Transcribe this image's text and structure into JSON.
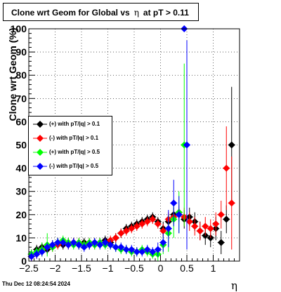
{
  "title": {
    "prefix": "Clone wrt Geom for Global vs",
    "eta": "η",
    "suffix": "at pT > 0.11"
  },
  "ylabel": "Clone wrt Geom (%)",
  "xlabel": "η",
  "timestamp": "Thu Dec 12 08:24:54 2024",
  "chart_data": {
    "type": "scatter",
    "title": "Clone wrt Geom for Global vs η at pT > 0.11",
    "xlabel": "η",
    "ylabel": "Clone wrt Geom (%)",
    "xlim": [
      -2.5,
      1.5
    ],
    "ylim": [
      0,
      100
    ],
    "x_ticks": [
      -2.5,
      -2,
      -1.5,
      -1,
      -0.5,
      0,
      0.5,
      1
    ],
    "x_tick_labels": [
      "−2.5",
      "−2",
      "−1.5",
      "−1",
      "−0.5",
      "0",
      "0.5",
      "1"
    ],
    "y_ticks": [
      0,
      10,
      20,
      30,
      40,
      50,
      60,
      70,
      80,
      90,
      100
    ],
    "y_tick_labels": [
      "0",
      "10",
      "20",
      "30",
      "40",
      "50",
      "60",
      "70",
      "80",
      "90",
      "100"
    ],
    "grid": true,
    "legend_position": "left, middle",
    "series": [
      {
        "name": "(+) with pT/|q| > 0.1",
        "color": "#000000",
        "marker": "diamond",
        "points": [
          [
            -2.45,
            3,
            2
          ],
          [
            -2.35,
            5,
            2
          ],
          [
            -2.25,
            6,
            2
          ],
          [
            -2.15,
            5,
            2
          ],
          [
            -2.05,
            7,
            2
          ],
          [
            -1.95,
            8,
            2
          ],
          [
            -1.85,
            7,
            2
          ],
          [
            -1.75,
            8,
            2
          ],
          [
            -1.65,
            8,
            2
          ],
          [
            -1.55,
            7,
            2
          ],
          [
            -1.45,
            8,
            2
          ],
          [
            -1.35,
            7,
            2
          ],
          [
            -1.25,
            8,
            2
          ],
          [
            -1.15,
            8,
            2
          ],
          [
            -1.05,
            9,
            2
          ],
          [
            -0.95,
            8,
            2
          ],
          [
            -0.85,
            10,
            2
          ],
          [
            -0.75,
            12,
            2
          ],
          [
            -0.65,
            14,
            2
          ],
          [
            -0.55,
            15,
            2
          ],
          [
            -0.45,
            16,
            2
          ],
          [
            -0.35,
            17,
            2
          ],
          [
            -0.25,
            18,
            2
          ],
          [
            -0.15,
            19,
            2
          ],
          [
            -0.05,
            17,
            2
          ],
          [
            0.05,
            14,
            3
          ],
          [
            0.15,
            17,
            3
          ],
          [
            0.25,
            20,
            3
          ],
          [
            0.35,
            20,
            3
          ],
          [
            0.45,
            18,
            4
          ],
          [
            0.55,
            19,
            4
          ],
          [
            0.65,
            17,
            4
          ],
          [
            0.75,
            13,
            4
          ],
          [
            0.85,
            11,
            4
          ],
          [
            0.95,
            10,
            4
          ],
          [
            1.05,
            14,
            5
          ],
          [
            1.15,
            8,
            5
          ],
          [
            1.25,
            18,
            6
          ],
          [
            1.35,
            50,
            25
          ]
        ]
      },
      {
        "name": "(-) with pT/|q| > 0.1",
        "color": "#ff0000",
        "marker": "diamond",
        "points": [
          [
            -2.45,
            2,
            2
          ],
          [
            -2.35,
            3,
            2
          ],
          [
            -2.25,
            5,
            2
          ],
          [
            -2.15,
            6,
            2
          ],
          [
            -2.05,
            6,
            2
          ],
          [
            -1.95,
            7,
            2
          ],
          [
            -1.85,
            8,
            2
          ],
          [
            -1.75,
            7,
            2
          ],
          [
            -1.65,
            8,
            2
          ],
          [
            -1.55,
            8,
            2
          ],
          [
            -1.45,
            7,
            2
          ],
          [
            -1.35,
            8,
            2
          ],
          [
            -1.25,
            7,
            2
          ],
          [
            -1.15,
            8,
            2
          ],
          [
            -1.05,
            8,
            2
          ],
          [
            -0.95,
            9,
            2
          ],
          [
            -0.85,
            10,
            2
          ],
          [
            -0.75,
            12,
            2
          ],
          [
            -0.65,
            13,
            2
          ],
          [
            -0.55,
            14,
            2
          ],
          [
            -0.45,
            15,
            2
          ],
          [
            -0.35,
            16,
            2
          ],
          [
            -0.25,
            17,
            2
          ],
          [
            -0.15,
            18,
            2
          ],
          [
            -0.05,
            16,
            2
          ],
          [
            0.05,
            13,
            3
          ],
          [
            0.15,
            18,
            3
          ],
          [
            0.25,
            19,
            3
          ],
          [
            0.35,
            21,
            3
          ],
          [
            0.45,
            19,
            4
          ],
          [
            0.55,
            17,
            4
          ],
          [
            0.65,
            15,
            4
          ],
          [
            0.75,
            13,
            4
          ],
          [
            0.85,
            15,
            4
          ],
          [
            0.95,
            14,
            4
          ],
          [
            1.05,
            16,
            5
          ],
          [
            1.15,
            20,
            6
          ],
          [
            1.25,
            40,
            18
          ],
          [
            1.35,
            25,
            20
          ]
        ]
      },
      {
        "name": "(+) with pT/|q| > 0.5",
        "color": "#00ff00",
        "marker": "diamond",
        "points": [
          [
            -2.45,
            3,
            2
          ],
          [
            -2.35,
            4,
            2
          ],
          [
            -2.25,
            5,
            3
          ],
          [
            -2.15,
            7,
            5
          ],
          [
            -2.05,
            6,
            2
          ],
          [
            -1.95,
            8,
            2
          ],
          [
            -1.85,
            9,
            2
          ],
          [
            -1.75,
            8,
            2
          ],
          [
            -1.65,
            7,
            2
          ],
          [
            -1.55,
            8,
            2
          ],
          [
            -1.45,
            7,
            2
          ],
          [
            -1.35,
            8,
            2
          ],
          [
            -1.25,
            7,
            2
          ],
          [
            -1.15,
            8,
            2
          ],
          [
            -1.05,
            7,
            2
          ],
          [
            -0.95,
            7,
            2
          ],
          [
            -0.85,
            6,
            2
          ],
          [
            -0.75,
            5,
            2
          ],
          [
            -0.65,
            5,
            2
          ],
          [
            -0.55,
            4,
            2
          ],
          [
            -0.45,
            4,
            2
          ],
          [
            -0.35,
            5,
            2
          ],
          [
            -0.25,
            4,
            2
          ],
          [
            -0.15,
            3,
            2
          ],
          [
            -0.05,
            3,
            3
          ],
          [
            0.05,
            7,
            4
          ],
          [
            0.15,
            12,
            8
          ],
          [
            0.25,
            18,
            8
          ],
          [
            0.35,
            21,
            9
          ],
          [
            0.45,
            50,
            35
          ]
        ]
      },
      {
        "name": "(-) with pT/|q| > 0.5",
        "color": "#0000ff",
        "marker": "diamond",
        "points": [
          [
            -2.45,
            2,
            2
          ],
          [
            -2.35,
            3,
            2
          ],
          [
            -2.25,
            4,
            2
          ],
          [
            -2.15,
            6,
            2
          ],
          [
            -2.05,
            7,
            2
          ],
          [
            -1.95,
            8,
            2
          ],
          [
            -1.85,
            8,
            2
          ],
          [
            -1.75,
            7,
            2
          ],
          [
            -1.65,
            8,
            2
          ],
          [
            -1.55,
            7,
            2
          ],
          [
            -1.45,
            6,
            2
          ],
          [
            -1.35,
            7,
            2
          ],
          [
            -1.25,
            8,
            2
          ],
          [
            -1.15,
            7,
            2
          ],
          [
            -1.05,
            8,
            2
          ],
          [
            -0.95,
            7,
            2
          ],
          [
            -0.85,
            6,
            2
          ],
          [
            -0.75,
            6,
            2
          ],
          [
            -0.65,
            5,
            2
          ],
          [
            -0.55,
            5,
            2
          ],
          [
            -0.45,
            4,
            2
          ],
          [
            -0.35,
            4,
            2
          ],
          [
            -0.25,
            5,
            2
          ],
          [
            -0.15,
            4,
            2
          ],
          [
            -0.05,
            5,
            3
          ],
          [
            0.05,
            8,
            4
          ],
          [
            0.15,
            14,
            8
          ],
          [
            0.25,
            25,
            10
          ],
          [
            0.35,
            20,
            8
          ],
          [
            0.45,
            100,
            0
          ],
          [
            0.5,
            50,
            45
          ]
        ]
      }
    ]
  }
}
